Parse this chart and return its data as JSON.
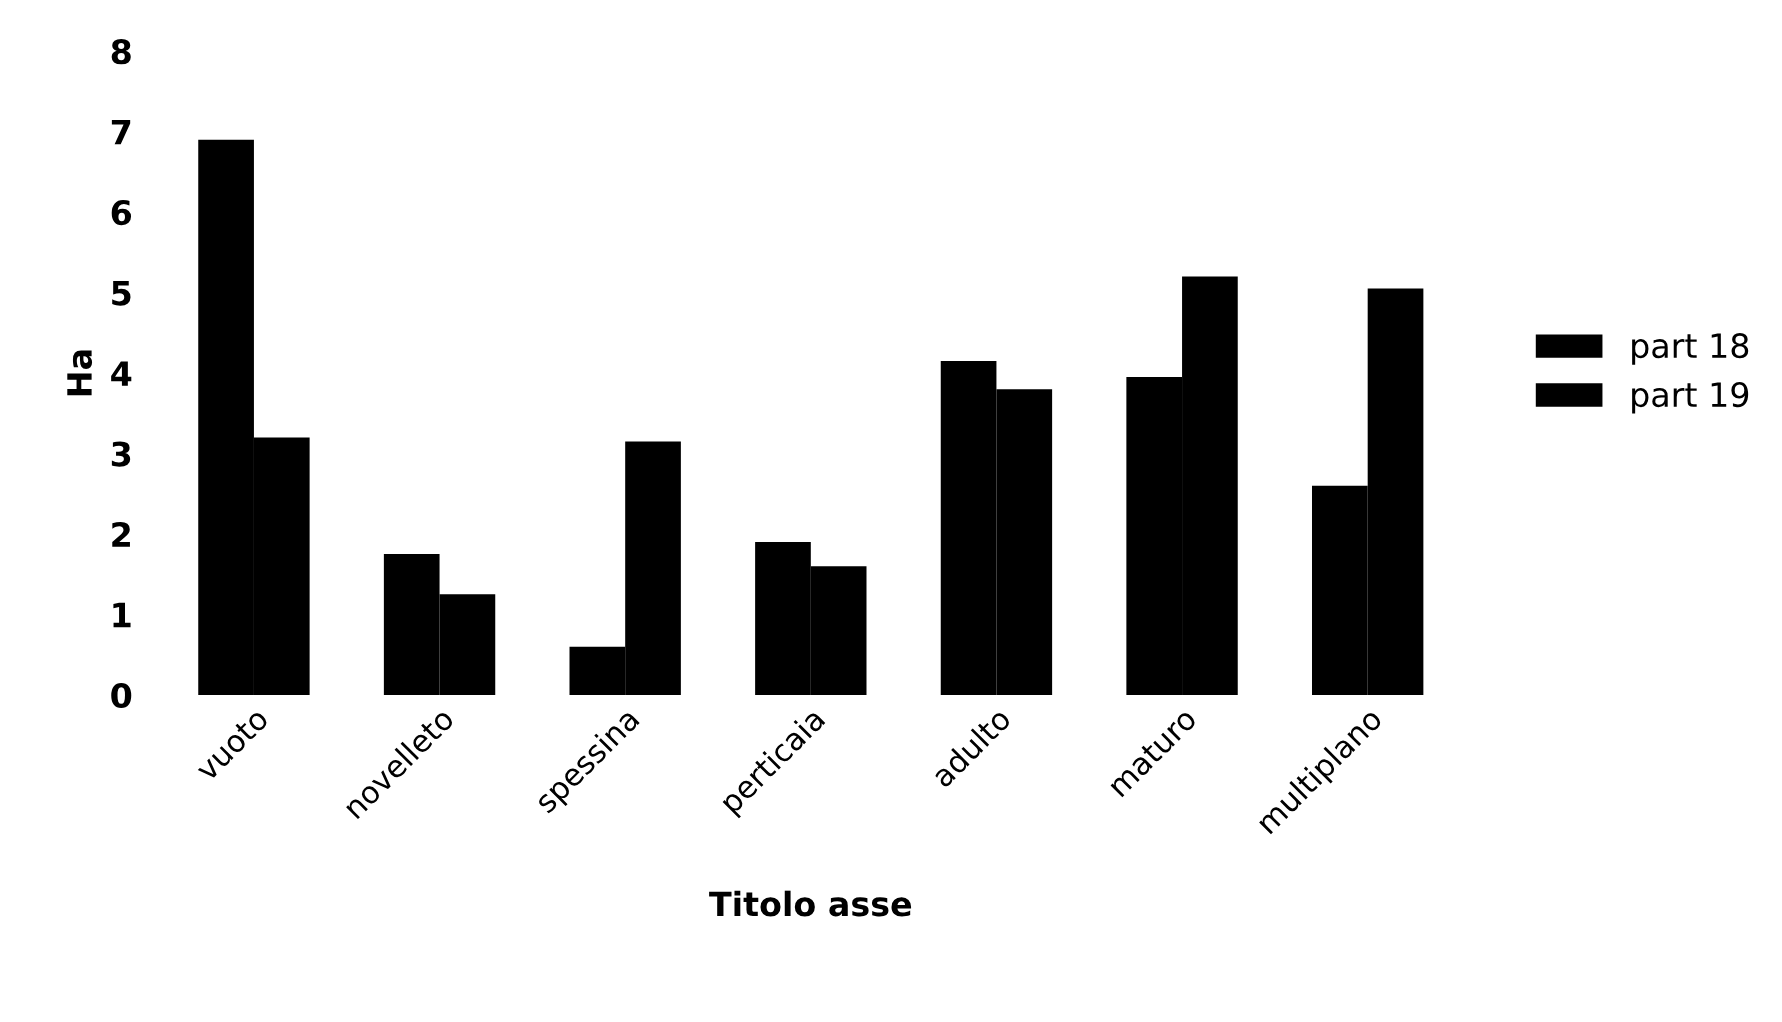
{
  "chart_data": {
    "type": "bar",
    "xlabel": "Titolo asse",
    "ylabel": "Ha",
    "categories": [
      "vuoto",
      "novelleto",
      "spessina",
      "perticaia",
      "adulto",
      "maturo",
      "multiplano"
    ],
    "series": [
      {
        "name": "part 18",
        "color": "#000000",
        "values": [
          6.9,
          1.75,
          0.6,
          1.9,
          4.15,
          3.95,
          2.6
        ]
      },
      {
        "name": "part 19",
        "color": "#000000",
        "values": [
          3.2,
          1.25,
          3.15,
          1.6,
          3.8,
          5.2,
          5.05
        ]
      }
    ],
    "ylim": [
      0,
      8
    ],
    "yticks": [
      0,
      1,
      2,
      3,
      4,
      5,
      6,
      7,
      8
    ],
    "legend": "right"
  }
}
